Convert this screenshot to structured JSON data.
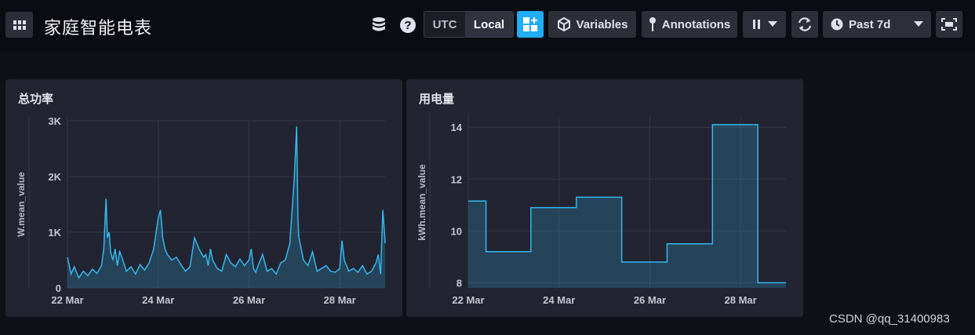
{
  "header": {
    "title": "家庭智能电表",
    "timezone_options": [
      "UTC",
      "Local"
    ],
    "timezone_selected": "Local",
    "variables_label": "Variables",
    "annotations_label": "Annotations",
    "time_range_label": "Past 7d",
    "accent_color": "#22adf6"
  },
  "icons": {
    "menu": "dashboard-grid-icon",
    "database": "database-icon",
    "help": "help-circle-icon",
    "add_cell": "add-cell-icon",
    "variables": "cube-icon",
    "annotations": "pin-icon",
    "pause": "pause-icon",
    "refresh": "refresh-icon",
    "time": "clock-icon",
    "present": "fullscreen-icon"
  },
  "panels": [
    {
      "title": "总功率"
    },
    {
      "title": "用电量"
    }
  ],
  "chart_data": [
    {
      "type": "area",
      "ylabel": "W.mean_value",
      "ylim": [
        0,
        3000
      ],
      "yticks": [
        0,
        1000,
        2000,
        3000
      ],
      "ytick_labels": [
        "0",
        "1K",
        "2K",
        "3K"
      ],
      "xticks": [
        "22 Mar",
        "24 Mar",
        "26 Mar",
        "28 Mar"
      ],
      "xlim_days": [
        0,
        7
      ],
      "line_color": "#34b7ef",
      "series": [
        {
          "x": [
            0,
            0.08,
            0.15,
            0.25,
            0.35,
            0.45,
            0.55,
            0.65,
            0.75,
            0.8,
            0.85,
            0.88,
            0.92,
            0.95,
            1.0,
            1.05,
            1.1,
            1.15,
            1.2,
            1.3,
            1.4,
            1.5,
            1.6,
            1.7,
            1.8,
            1.9,
            2.0,
            2.05,
            2.1,
            2.15,
            2.2,
            2.3,
            2.4,
            2.5,
            2.6,
            2.7,
            2.8,
            2.9,
            3.0,
            3.05,
            3.1,
            3.15,
            3.2,
            3.3,
            3.4,
            3.5,
            3.6,
            3.7,
            3.8,
            3.9,
            4.0,
            4.05,
            4.1,
            4.15,
            4.2,
            4.3,
            4.4,
            4.5,
            4.6,
            4.7,
            4.8,
            4.9,
            5.0,
            5.05,
            5.08,
            5.1,
            5.15,
            5.2,
            5.3,
            5.4,
            5.5,
            5.6,
            5.7,
            5.8,
            5.9,
            6.0,
            6.05,
            6.1,
            6.2,
            6.3,
            6.4,
            6.5,
            6.6,
            6.7,
            6.8,
            6.85,
            6.9,
            6.95,
            7.0
          ],
          "y": [
            550,
            250,
            380,
            180,
            300,
            220,
            340,
            260,
            400,
            700,
            1600,
            900,
            1000,
            650,
            500,
            700,
            400,
            650,
            550,
            300,
            380,
            250,
            420,
            320,
            450,
            700,
            1250,
            1400,
            900,
            700,
            600,
            500,
            550,
            420,
            300,
            380,
            900,
            700,
            550,
            600,
            400,
            700,
            500,
            350,
            300,
            600,
            450,
            380,
            520,
            400,
            500,
            700,
            350,
            280,
            400,
            600,
            300,
            350,
            250,
            450,
            500,
            800,
            2000,
            2900,
            1200,
            900,
            700,
            500,
            400,
            650,
            300,
            350,
            400,
            300,
            280,
            350,
            850,
            500,
            300,
            350,
            280,
            400,
            250,
            300,
            450,
            600,
            250,
            1400,
            800
          ]
        }
      ]
    },
    {
      "type": "area",
      "ylabel": "kWh.mean_value",
      "ylim": [
        7.8,
        14.4
      ],
      "yticks": [
        8,
        10,
        12,
        14
      ],
      "ytick_labels": [
        "8",
        "10",
        "12",
        "14"
      ],
      "xticks": [
        "22 Mar",
        "24 Mar",
        "26 Mar",
        "28 Mar"
      ],
      "xlim_days": [
        0,
        7
      ],
      "line_color": "#34b7ef",
      "series": [
        {
          "x": [
            0,
            0.39,
            0.39,
            1.38,
            1.38,
            2.38,
            2.38,
            3.38,
            3.38,
            4.38,
            4.38,
            5.38,
            5.38,
            6.38,
            6.38,
            7.0
          ],
          "y": [
            11.15,
            11.15,
            9.2,
            9.2,
            10.9,
            10.9,
            11.3,
            11.3,
            8.8,
            8.8,
            9.5,
            9.5,
            14.1,
            14.1,
            8.0,
            8.0
          ]
        }
      ]
    }
  ],
  "watermark": "CSDN @qq_31400983"
}
